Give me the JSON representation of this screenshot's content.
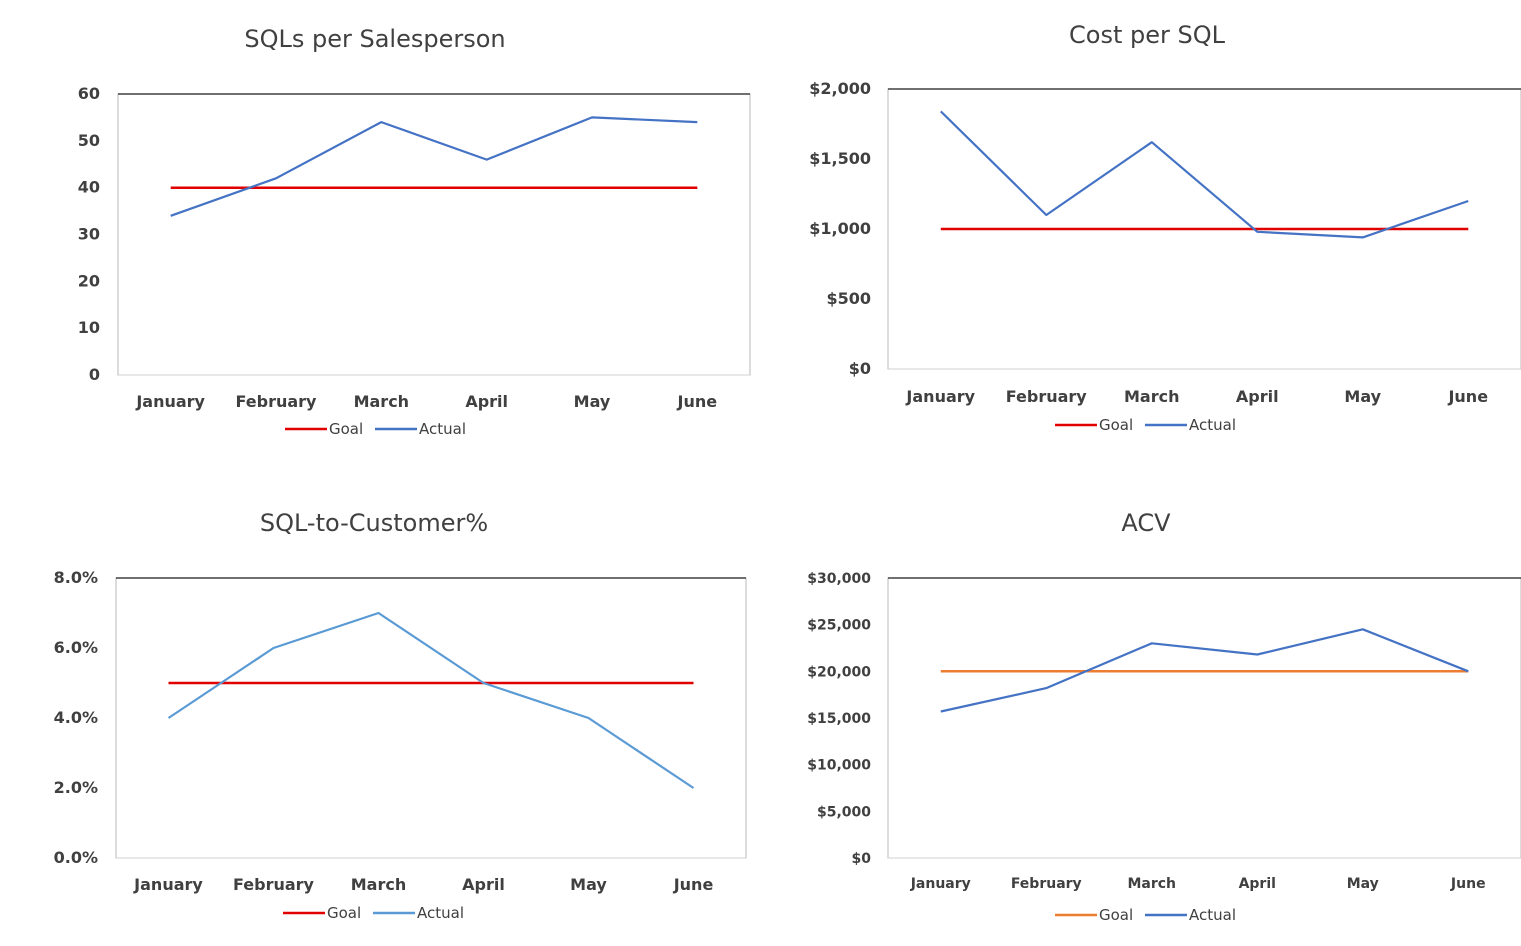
{
  "chart_data": [
    {
      "type": "line",
      "title": "SQLs per Salesperson",
      "categories": [
        "January",
        "February",
        "March",
        "April",
        "May",
        "June"
      ],
      "ylim": [
        0,
        60
      ],
      "yticks": [
        "0",
        "10",
        "20",
        "30",
        "40",
        "50",
        "60"
      ],
      "series": [
        {
          "name": "Goal",
          "values": [
            40,
            40,
            40,
            40,
            40,
            40
          ],
          "color": "#e00000"
        },
        {
          "name": "Actual",
          "values": [
            34,
            42,
            54,
            46,
            55,
            54
          ],
          "color": "#4472c4"
        }
      ],
      "legend": "bottom",
      "grid": false
    },
    {
      "type": "line",
      "title": "Cost per SQL",
      "categories": [
        "January",
        "February",
        "March",
        "April",
        "May",
        "June"
      ],
      "ylim": [
        0,
        2000
      ],
      "yticks": [
        "$0",
        "$500",
        "$1,000",
        "$1,500",
        "$2,000"
      ],
      "series": [
        {
          "name": "Goal",
          "values": [
            1000,
            1000,
            1000,
            1000,
            1000,
            1000
          ],
          "color": "#e00000"
        },
        {
          "name": "Actual",
          "values": [
            1840,
            1100,
            1620,
            980,
            940,
            1200
          ],
          "color": "#4472c4"
        }
      ],
      "legend": "bottom",
      "grid": false
    },
    {
      "type": "line",
      "title": "SQL-to-Customer%",
      "categories": [
        "January",
        "February",
        "March",
        "April",
        "May",
        "June"
      ],
      "ylim": [
        0,
        0.08
      ],
      "yticks": [
        "0.0%",
        "2.0%",
        "4.0%",
        "6.0%",
        "8.0%"
      ],
      "series": [
        {
          "name": "Goal",
          "values": [
            0.05,
            0.05,
            0.05,
            0.05,
            0.05,
            0.05
          ],
          "color": "#e00000"
        },
        {
          "name": "Actual",
          "values": [
            0.04,
            0.06,
            0.07,
            0.05,
            0.04,
            0.02
          ],
          "color": "#5b9bd5"
        }
      ],
      "legend": "bottom",
      "grid": false
    },
    {
      "type": "line",
      "title": "ACV",
      "categories": [
        "January",
        "February",
        "March",
        "April",
        "May",
        "June"
      ],
      "ylim": [
        0,
        30000
      ],
      "yticks": [
        "$0",
        "$5,000",
        "$10,000",
        "$15,000",
        "$20,000",
        "$25,000",
        "$30,000"
      ],
      "series": [
        {
          "name": "Goal",
          "values": [
            20000,
            20000,
            20000,
            20000,
            20000,
            20000
          ],
          "color": "#ed7d31"
        },
        {
          "name": "Actual",
          "values": [
            15700,
            18200,
            23000,
            21800,
            24500,
            20000
          ],
          "color": "#4472c4"
        }
      ],
      "legend": "bottom",
      "grid": false
    }
  ]
}
